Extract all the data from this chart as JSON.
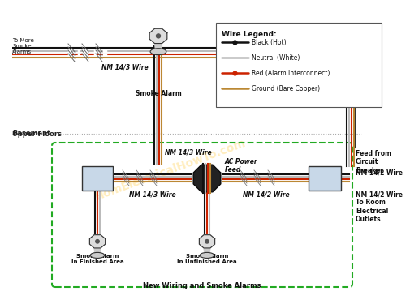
{
  "bg_color": "#ffffff",
  "legend_title": "Wire Legend:",
  "legend_items": [
    {
      "label": "Black (Hot)",
      "color": "#111111",
      "dot": true
    },
    {
      "label": "Neutral (White)",
      "color": "#aaaaaa",
      "dot": false
    },
    {
      "label": "Red (Alarm Interconnect)",
      "color": "#cc2200",
      "dot": true
    },
    {
      "label": "Ground (Bare Copper)",
      "color": "#bb8833",
      "dot": false
    }
  ],
  "wire_colors": {
    "black": "#111111",
    "white": "#bbbbbb",
    "red": "#cc2200",
    "copper": "#bb8833"
  },
  "upper_floor_label": "Upper Floors",
  "basement_label": "Basement",
  "new_wiring_label": "New Wiring and Smoke Alarms",
  "nm143_label": "NM 14/3 Wire",
  "nm142_label": "NM 14/2 Wire",
  "ac_power_label": "AC Power\nFeed",
  "feed_label": "Feed from\nCircuit\nBreaker",
  "outlet_label": "NM 14/2 Wire\nTo Room\nElectrical\nOutlets",
  "nm142_upper_label": "NM 14/2 Wire"
}
